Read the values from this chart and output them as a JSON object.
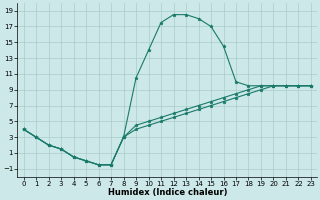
{
  "xlabel": "Humidex (Indice chaleur)",
  "bg_color": "#cce8e8",
  "grid_color": "#aacccc",
  "line_color": "#1a7a6a",
  "xlim": [
    -0.5,
    23.5
  ],
  "ylim": [
    -2.0,
    20.0
  ],
  "xticks": [
    0,
    1,
    2,
    3,
    4,
    5,
    6,
    7,
    8,
    9,
    10,
    11,
    12,
    13,
    14,
    15,
    16,
    17,
    18,
    19,
    20,
    21,
    22,
    23
  ],
  "yticks": [
    -1,
    1,
    3,
    5,
    7,
    9,
    11,
    13,
    15,
    17,
    19
  ],
  "line1_x": [
    0,
    1,
    2,
    3,
    4,
    5,
    6,
    7,
    8,
    9,
    10,
    11,
    12,
    13,
    14,
    15,
    16,
    17,
    18,
    19,
    20,
    21,
    22,
    23
  ],
  "line1_y": [
    4,
    3,
    2,
    1.5,
    0.5,
    0,
    -0.5,
    -0.5,
    3,
    10.5,
    14,
    17.5,
    18.5,
    18.5,
    18,
    17,
    14.5,
    10,
    9.5,
    9.5,
    9.5,
    9.5,
    9.5,
    9.5
  ],
  "line2_x": [
    0,
    1,
    2,
    3,
    4,
    5,
    6,
    7,
    8,
    9,
    10,
    11,
    12,
    13,
    14,
    15,
    16,
    17,
    18,
    19,
    20,
    21,
    22,
    23
  ],
  "line2_y": [
    4,
    3,
    2,
    1.5,
    0.5,
    0,
    -0.5,
    -0.5,
    3,
    4.5,
    5.0,
    5.5,
    6.0,
    6.5,
    7.0,
    7.5,
    8.0,
    8.5,
    9.0,
    9.5,
    9.5,
    9.5,
    9.5,
    9.5
  ],
  "line3_x": [
    0,
    1,
    2,
    3,
    4,
    5,
    6,
    7,
    8,
    9,
    10,
    11,
    12,
    13,
    14,
    15,
    16,
    17,
    18,
    19,
    20,
    21,
    22,
    23
  ],
  "line3_y": [
    4,
    3,
    2,
    1.5,
    0.5,
    0,
    -0.5,
    -0.5,
    3,
    4.0,
    4.5,
    5.0,
    5.5,
    6.0,
    6.5,
    7.0,
    7.5,
    8.0,
    8.5,
    9.0,
    9.5,
    9.5,
    9.5,
    9.5
  ],
  "tick_fontsize": 5,
  "xlabel_fontsize": 6
}
